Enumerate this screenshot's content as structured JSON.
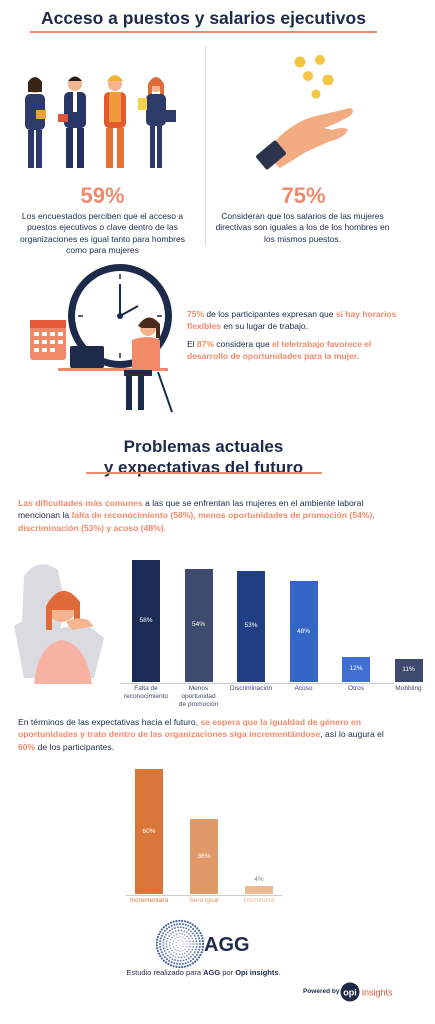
{
  "header": {
    "title": "Acceso a puestos y salarios ejecutivos"
  },
  "stats": [
    {
      "value": "59%",
      "text": "Los encuestados perciben que el acceso a puestos ejecutivos o clave dentro de las organizaciones es igual tanto para hombres como para mujeres"
    },
    {
      "value": "75%",
      "text": "Consideran que los salarios de las mujeres directivas son iguales a los de los hombres en los mismos puestos."
    }
  ],
  "flex": {
    "p1_a": "75%",
    "p1_b": " de los participantes expresan que ",
    "p1_c": "sí hay horarios flexibles",
    "p1_d": " en su lugar de trabajo.",
    "p2_a": "El ",
    "p2_b": "87%",
    "p2_c": " considera que ",
    "p2_d": "el teletrabajo favorece el desarrollo de oportunidades para la mujer",
    "p2_e": "."
  },
  "section2": {
    "title_line1": "Problemas actuales",
    "title_line2": "y expectativas del futuro",
    "intro_a": "Las dificultades más comunes",
    "intro_b": " a las que se enfrentan las mujeres en el ambiente laboral mencionan la ",
    "intro_c": "falta de reconocimiento (58%), menos oportunidades de promoción (54%), discriminación (53%) y acoso (48%).",
    "future_a": "En términos de las expectativas hacia el futuro, ",
    "future_b": "se espera que la igualdad de género en oportunidades y trato dentro de las organizaciones siga incrementándose",
    "future_c": ", así lo augura el ",
    "future_d": "60%",
    "future_e": " de los participantes."
  },
  "chart_data": [
    {
      "type": "bar",
      "categories": [
        "Falta de reconocimiento",
        "Menos oportunidad de promoción",
        "Discriminación",
        "Acoso",
        "Otros",
        "Mobbling"
      ],
      "category_lines": [
        [
          "Falta de",
          "reconocimiento"
        ],
        [
          "Menos",
          "oportunidad",
          "de promoción"
        ],
        [
          "Discriminación"
        ],
        [
          "Acoso"
        ],
        [
          "Otros"
        ],
        [
          "Mobbling"
        ]
      ],
      "values": [
        58,
        54,
        53,
        48,
        12,
        11
      ],
      "labels": [
        "58%",
        "54%",
        "53%",
        "48%",
        "12%",
        "11%"
      ],
      "colors": [
        "#1d2b57",
        "#3e4a6e",
        "#223f85",
        "#3466c6",
        "#3f6fd0",
        "#3e4a6e"
      ],
      "ylim": [
        0,
        60
      ]
    },
    {
      "type": "bar",
      "categories": [
        "Incrementará",
        "Será igual",
        "Disminuirá"
      ],
      "values": [
        60,
        36,
        4
      ],
      "labels": [
        "60%",
        "36%",
        "4%"
      ],
      "colors": [
        "#d9773a",
        "#e09a6a",
        "#eab994"
      ],
      "ylim": [
        0,
        60
      ]
    }
  ],
  "footer": {
    "logo_text": "AGG",
    "credit_a": "Estudio realizado para ",
    "credit_b": "AGG",
    "credit_c": " por ",
    "credit_d": "Opi insights",
    "credit_e": ".",
    "powered": "Powered by",
    "opi": "opi",
    "insights": "insights"
  }
}
